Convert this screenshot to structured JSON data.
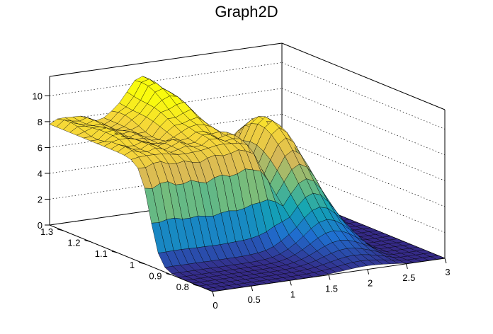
{
  "chart_data": {
    "type": "surface",
    "title": "Graph2D",
    "x_ticks": [
      "0",
      "0.5",
      "1",
      "1.5",
      "2",
      "2.5",
      "3"
    ],
    "y_ticks": [
      "0.8",
      "0.9",
      "1",
      "1.1",
      "1.2",
      "1.3"
    ],
    "z_ticks": [
      "0",
      "2",
      "4",
      "6",
      "8",
      "10"
    ],
    "xlim": [
      0,
      3
    ],
    "ylim": [
      0.75,
      1.35
    ],
    "zlim": [
      0,
      11.5
    ],
    "grid": true,
    "colormap": [
      "#352a87",
      "#1f6fd0",
      "#12a4b4",
      "#71bc7e",
      "#d7b857",
      "#f6d63a",
      "#f9fb0e"
    ],
    "surface": {
      "description_values": "Plateau height ~8 for y > ~0.98 and x < ~1.6, ridge up to ~10.5 near x 0.9-1.5 at high y, bump ~8.5 near x 1.6-2.3 at mid y, dropping to 0 beyond x ~2.5 and for low y.",
      "x_range": [
        0,
        3
      ],
      "y_range": [
        0.75,
        1.35
      ],
      "nx": 30,
      "ny": 24
    }
  }
}
